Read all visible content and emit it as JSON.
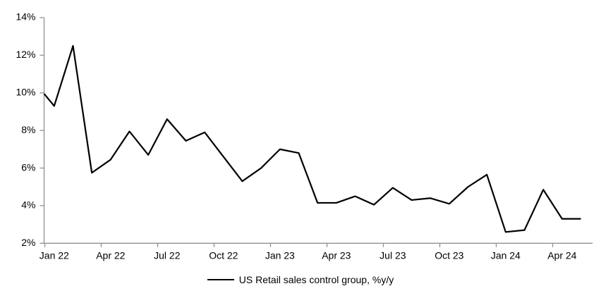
{
  "chart_data": {
    "type": "line",
    "title": "",
    "xlabel": "",
    "ylabel": "",
    "ylim": [
      2,
      14
    ],
    "y_tick_interval": 2,
    "grid": false,
    "background_color": "#ffffff",
    "axis_color": "#909090",
    "text_color": "#000000",
    "y_ticks": [
      {
        "value": 2,
        "label": "2%"
      },
      {
        "value": 4,
        "label": "4%"
      },
      {
        "value": 6,
        "label": "6%"
      },
      {
        "value": 8,
        "label": "8%"
      },
      {
        "value": 10,
        "label": "10%"
      },
      {
        "value": 12,
        "label": "12%"
      },
      {
        "value": 14,
        "label": "14%"
      }
    ],
    "x_tick_labels": [
      "Jan 22",
      "Apr 22",
      "Jul 22",
      "Oct 22",
      "Jan 23",
      "Apr 23",
      "Jul 23",
      "Oct 23",
      "Jan 24",
      "Apr 24"
    ],
    "x_tick_month_step": 3,
    "legend": {
      "label": "US Retail sales control group, %y/y",
      "position": "bottom-center",
      "swatch": "black-line"
    },
    "series": [
      {
        "name": "US Retail sales control group, %y/y",
        "color": "#000000",
        "axis_entry_value": 9.95,
        "x": [
          "Jan 22",
          "Feb 22",
          "Mar 22",
          "Apr 22",
          "May 22",
          "Jun 22",
          "Jul 22",
          "Aug 22",
          "Sep 22",
          "Oct 22",
          "Nov 22",
          "Dec 22",
          "Jan 23",
          "Feb 23",
          "Mar 23",
          "Apr 23",
          "May 23",
          "Jun 23",
          "Jul 23",
          "Aug 23",
          "Sep 23",
          "Oct 23",
          "Nov 23",
          "Dec 23",
          "Jan 24",
          "Feb 24",
          "Mar 24",
          "Apr 24",
          "May 24"
        ],
        "values": [
          9.3,
          12.5,
          5.75,
          6.45,
          7.95,
          6.7,
          8.6,
          7.45,
          7.9,
          6.6,
          5.3,
          6.0,
          7.0,
          6.8,
          4.15,
          4.15,
          4.5,
          4.05,
          4.95,
          4.3,
          4.4,
          4.1,
          5.0,
          5.65,
          2.6,
          2.7,
          4.85,
          3.3,
          3.3
        ]
      }
    ]
  }
}
